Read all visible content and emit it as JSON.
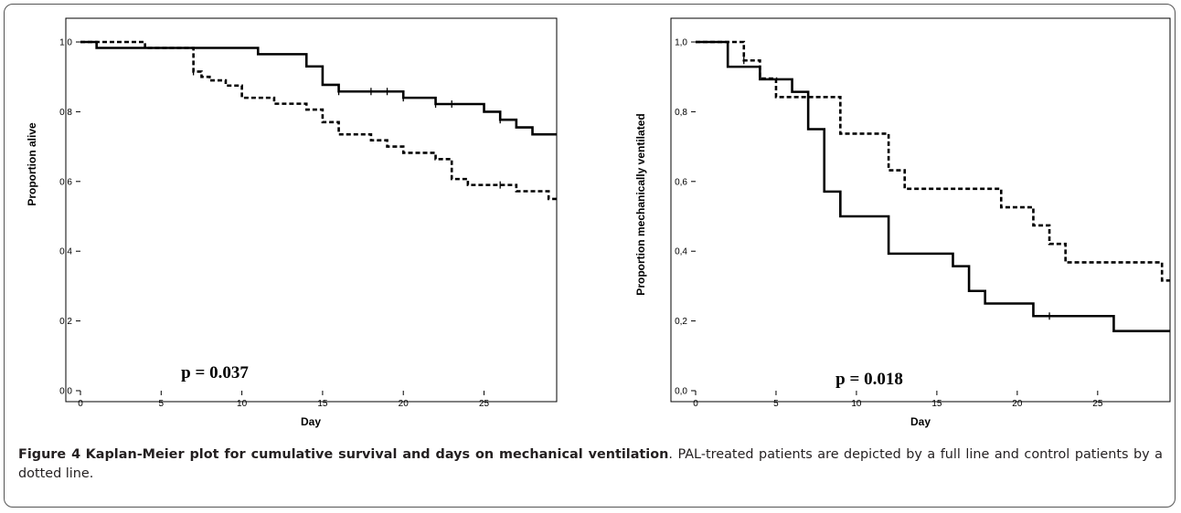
{
  "figure": {
    "caption_label": "Figure 4",
    "caption_title": "Kaplan-Meier plot for cumulative survival and days on mechanical ventilation",
    "caption_text": ". PAL-treated patients are depicted by a full line and control patients by a dotted line."
  },
  "chart_data": [
    {
      "type": "line",
      "step": true,
      "title": "",
      "xlabel": "Day",
      "ylabel": "Proportion alive",
      "xlim": [
        0,
        29.5
      ],
      "ylim": [
        0,
        1
      ],
      "xticks": [
        0,
        5,
        10,
        15,
        20,
        25
      ],
      "yticks": [
        0,
        0.2,
        0.4,
        0.6,
        0.8,
        1.0
      ],
      "xtick_labels": [
        "0",
        "5",
        "10",
        "15",
        "20",
        "25"
      ],
      "ytick_labels": [
        "0,0",
        "0,2",
        "0,4",
        "0,6",
        "0,8",
        "1,0"
      ],
      "annotation": "p = 0.037",
      "grid": false,
      "series": [
        {
          "style": "solid",
          "color": "#000000",
          "steps": [
            [
              0,
              1.0
            ],
            [
              1,
              0.983
            ],
            [
              11,
              0.965
            ],
            [
              14,
              0.93
            ],
            [
              15,
              0.877
            ],
            [
              16,
              0.858
            ],
            [
              20,
              0.84
            ],
            [
              22,
              0.822
            ],
            [
              25,
              0.8
            ],
            [
              26,
              0.777
            ],
            [
              27,
              0.755
            ],
            [
              28,
              0.735
            ]
          ],
          "end_x": 29.5,
          "censor_x": [
            16,
            18,
            19,
            20,
            22,
            23,
            26
          ]
        },
        {
          "style": "dashed",
          "color": "#000000",
          "steps": [
            [
              0,
              1.0
            ],
            [
              4,
              0.983
            ],
            [
              7,
              0.915
            ],
            [
              7.5,
              0.9
            ],
            [
              8,
              0.89
            ],
            [
              9,
              0.875
            ],
            [
              10,
              0.84
            ],
            [
              12,
              0.823
            ],
            [
              14,
              0.806
            ],
            [
              15,
              0.77
            ],
            [
              16,
              0.735
            ],
            [
              18,
              0.718
            ],
            [
              19,
              0.7
            ],
            [
              20,
              0.682
            ],
            [
              22,
              0.664
            ],
            [
              23,
              0.607
            ],
            [
              24,
              0.59
            ],
            [
              27,
              0.572
            ],
            [
              29,
              0.55
            ]
          ],
          "end_x": 29.5,
          "censor_x": [
            7,
            26
          ]
        }
      ]
    },
    {
      "type": "line",
      "step": true,
      "title": "",
      "xlabel": "Day",
      "ylabel": "Proportion mechanically ventilated",
      "xlim": [
        0,
        29.5
      ],
      "ylim": [
        0,
        1
      ],
      "xticks": [
        0,
        5,
        10,
        15,
        20,
        25
      ],
      "yticks": [
        0,
        0.2,
        0.4,
        0.6,
        0.8,
        1.0
      ],
      "xtick_labels": [
        "0",
        "5",
        "10",
        "15",
        "20",
        "25"
      ],
      "ytick_labels": [
        "0,0",
        "0,2",
        "0,4",
        "0,6",
        "0,8",
        "1,0"
      ],
      "annotation": "p = 0.018",
      "grid": false,
      "series": [
        {
          "style": "solid",
          "color": "#000000",
          "steps": [
            [
              0,
              1.0
            ],
            [
              2,
              0.929
            ],
            [
              4,
              0.893
            ],
            [
              6,
              0.857
            ],
            [
              7,
              0.75
            ],
            [
              8,
              0.571
            ],
            [
              9,
              0.5
            ],
            [
              12,
              0.393
            ],
            [
              16,
              0.357
            ],
            [
              17,
              0.286
            ],
            [
              18,
              0.25
            ],
            [
              21,
              0.214
            ],
            [
              26,
              0.171
            ]
          ],
          "end_x": 29.5,
          "censor_x": [
            22
          ]
        },
        {
          "style": "dashed",
          "color": "#000000",
          "steps": [
            [
              0,
              1.0
            ],
            [
              3,
              0.947
            ],
            [
              4,
              0.895
            ],
            [
              5,
              0.842
            ],
            [
              9,
              0.737
            ],
            [
              12,
              0.632
            ],
            [
              13,
              0.579
            ],
            [
              19,
              0.526
            ],
            [
              21,
              0.474
            ],
            [
              22,
              0.421
            ],
            [
              23,
              0.368
            ],
            [
              29,
              0.316
            ]
          ],
          "end_x": 29.5,
          "censor_x": [
            3
          ]
        }
      ]
    }
  ]
}
